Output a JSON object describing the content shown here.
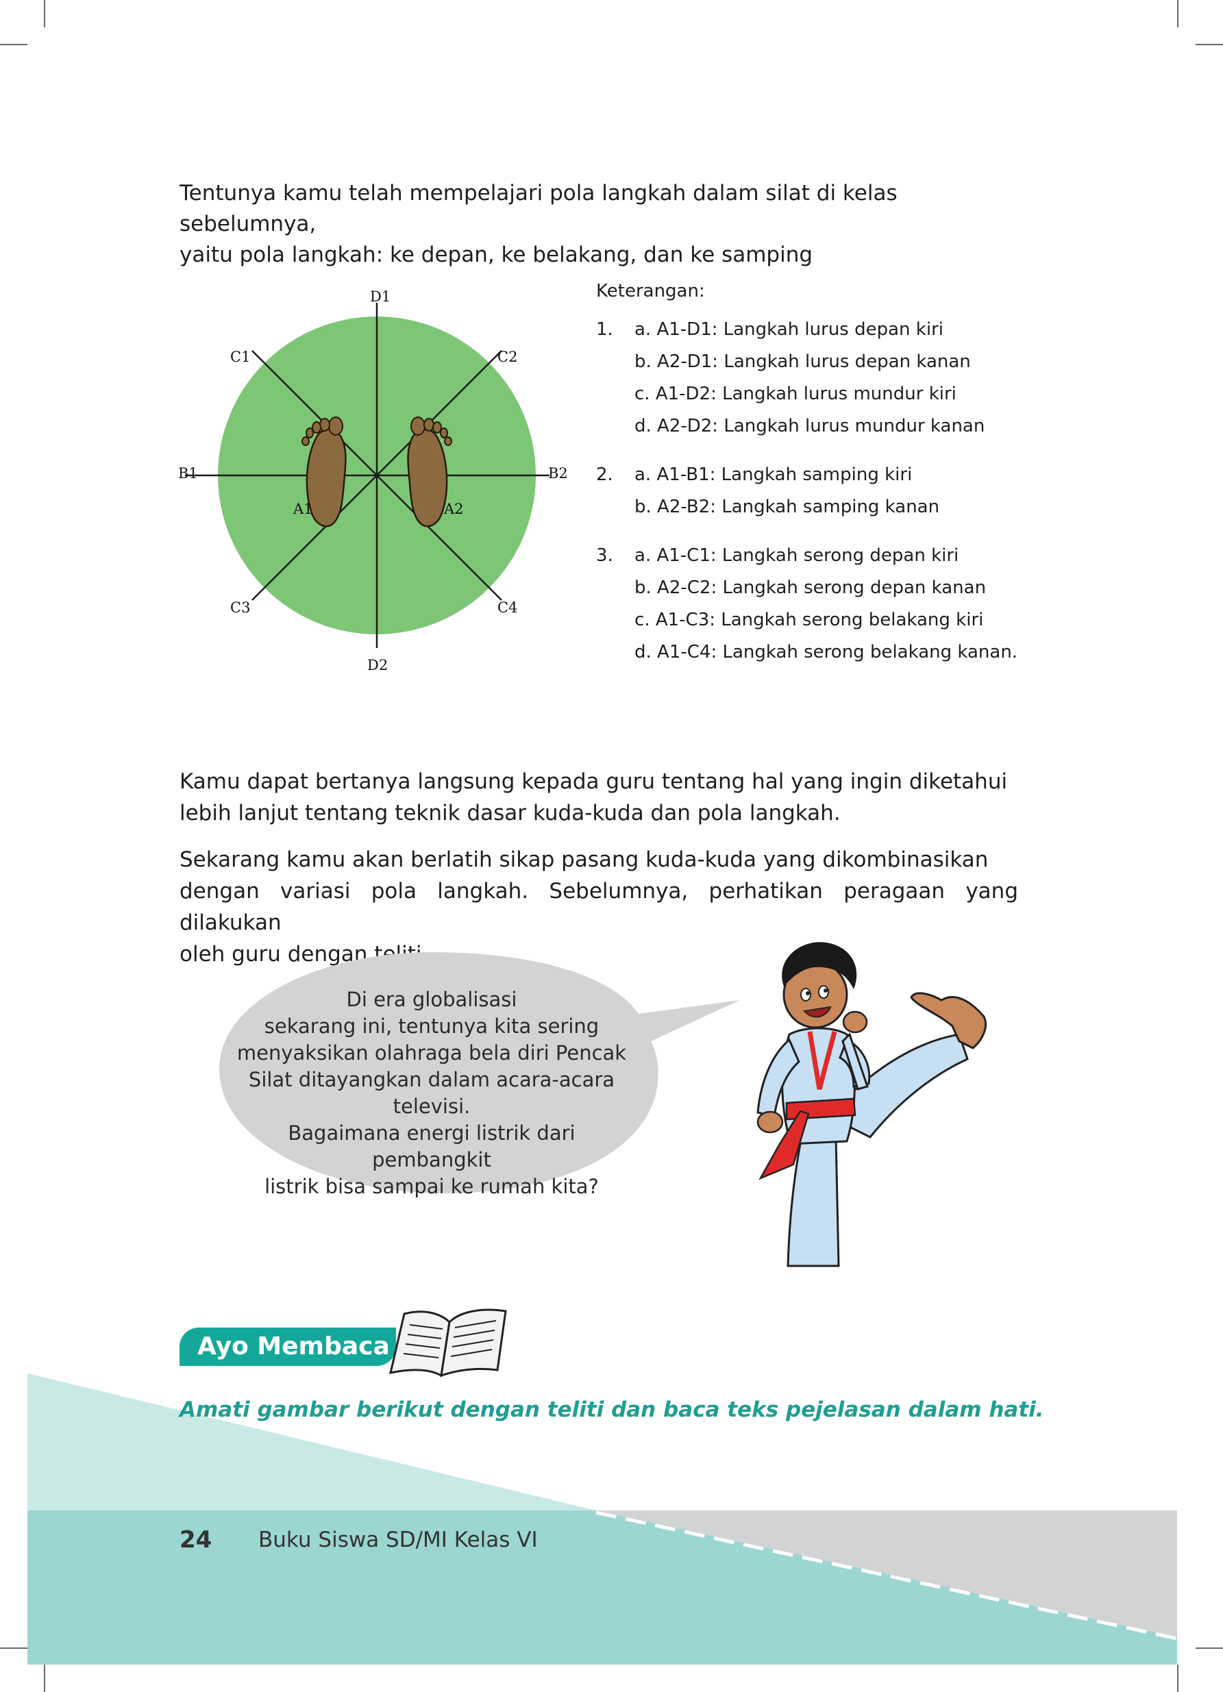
{
  "intro": {
    "line1": "Tentunya kamu telah mempelajari pola langkah dalam silat di kelas sebelumnya,",
    "line2": "yaitu pola langkah: ke depan, ke belakang, dan  ke samping"
  },
  "diagram": {
    "labels": {
      "d1": "D1",
      "d2": "D2",
      "c1": "C1",
      "c2": "C2",
      "c3": "C3",
      "c4": "C4",
      "b1": "B1",
      "b2": "B2",
      "a1": "A1",
      "a2": "A2"
    },
    "circle_color": "#7dc675",
    "foot_color": "#8b6a3f"
  },
  "legend": {
    "title": "Keterangan:",
    "groups": [
      {
        "num": "1.",
        "items": [
          "a. A1-D1: Langkah lurus depan kiri",
          "b. A2-D1: Langkah lurus depan kanan",
          "c. A1-D2: Langkah lurus mundur kiri",
          "d. A2-D2: Langkah lurus mundur kanan"
        ]
      },
      {
        "num": "2.",
        "items": [
          "a. A1-B1: Langkah samping kiri",
          "b. A2-B2: Langkah samping kanan"
        ]
      },
      {
        "num": "3.",
        "items": [
          "a. A1-C1: Langkah serong depan kiri",
          "b. A2-C2: Langkah serong depan kanan",
          "c.  A1-C3: Langkah serong belakang kiri",
          "d. A1-C4: Langkah serong belakang kanan."
        ]
      }
    ]
  },
  "paragraphs": [
    {
      "line1": "Kamu dapat bertanya langsung kepada guru tentang hal yang ingin diketahui",
      "line2": "lebih lanjut tentang teknik dasar kuda-kuda dan pola langkah."
    },
    {
      "line1": "Sekarang kamu akan berlatih sikap pasang kuda-kuda yang dikombinasikan",
      "line2": "dengan variasi pola langkah. Sebelumnya, perhatikan peragaan yang dilakukan",
      "line3": "oleh guru dengan teliti."
    }
  ],
  "speech_bubble": {
    "lines": [
      "Di era globalisasi",
      "sekarang ini, tentunya kita sering",
      "menyaksikan  olahraga bela diri Pencak",
      "Silat ditayangkan dalam acara-acara televisi.",
      "Bagaimana energi  listrik dari pembangkit",
      "listrik  bisa sampai ke rumah kita?"
    ]
  },
  "section": {
    "badge": "Ayo Membaca",
    "instruction": "Amati gambar berikut dengan teliti dan baca teks pejelasan dalam hati."
  },
  "footer": {
    "page_number": "24",
    "book_title": "Buku Siswa SD/MI Kelas VI"
  },
  "colors": {
    "teal": "#14a89a",
    "footer_teal": "#9bd6d1",
    "light_teal": "#c9e9e6",
    "grey": "#d2d3d4"
  }
}
